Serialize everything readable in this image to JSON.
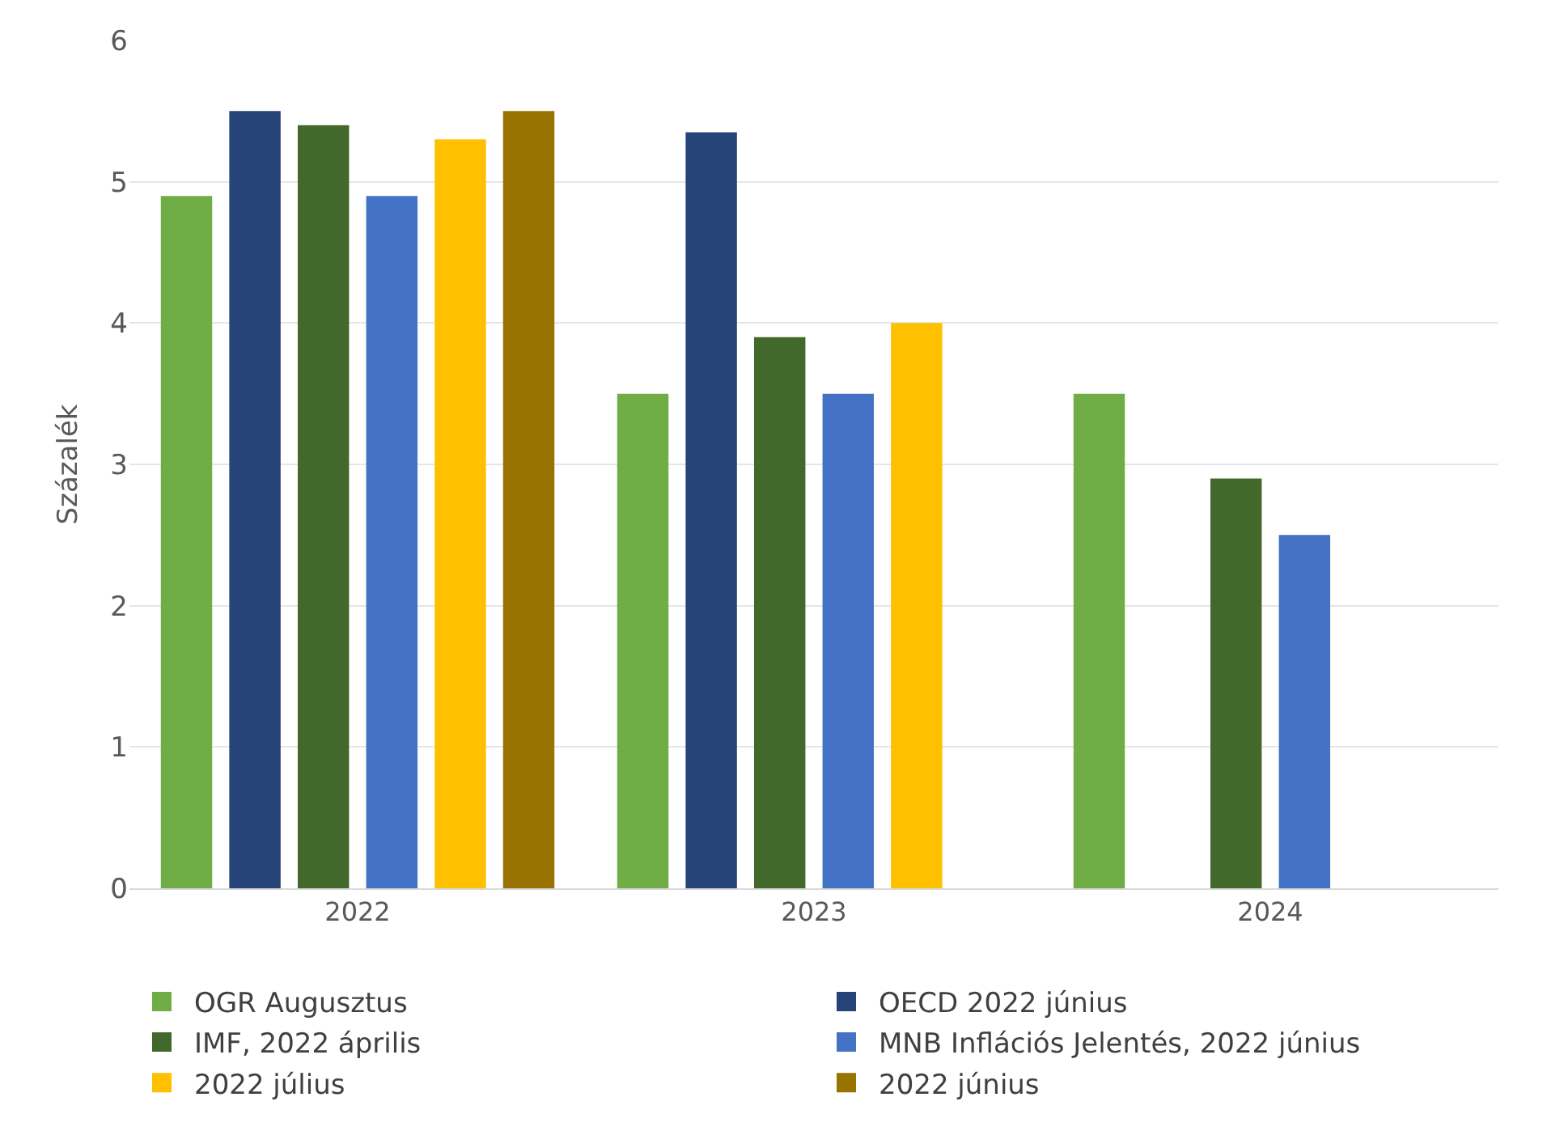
{
  "chart_data": {
    "type": "bar",
    "ylabel": "Százalék",
    "categories": [
      "2022",
      "2023",
      "2024"
    ],
    "series": [
      {
        "name": "OGR Augusztus",
        "color": "#70ad47",
        "values": [
          4.9,
          3.5,
          3.5
        ]
      },
      {
        "name": "OECD 2022 június",
        "color": "#264478",
        "values": [
          5.5,
          5.35,
          null
        ]
      },
      {
        "name": "IMF, 2022 április",
        "color": "#43682b",
        "values": [
          5.4,
          3.9,
          2.9
        ]
      },
      {
        "name": "MNB Inflációs Jelentés, 2022 június",
        "color": "#4472c4",
        "values": [
          4.9,
          3.5,
          2.5
        ]
      },
      {
        "name": "2022 július",
        "color": "#ffc000",
        "values": [
          5.3,
          4.0,
          null
        ]
      },
      {
        "name": "2022 június",
        "color": "#997300",
        "values": [
          5.5,
          null,
          null
        ]
      }
    ],
    "ylim": [
      0,
      6
    ],
    "yticks": [
      0,
      1,
      2,
      3,
      4,
      5,
      6
    ],
    "grid": "y",
    "legend": "bottom"
  }
}
